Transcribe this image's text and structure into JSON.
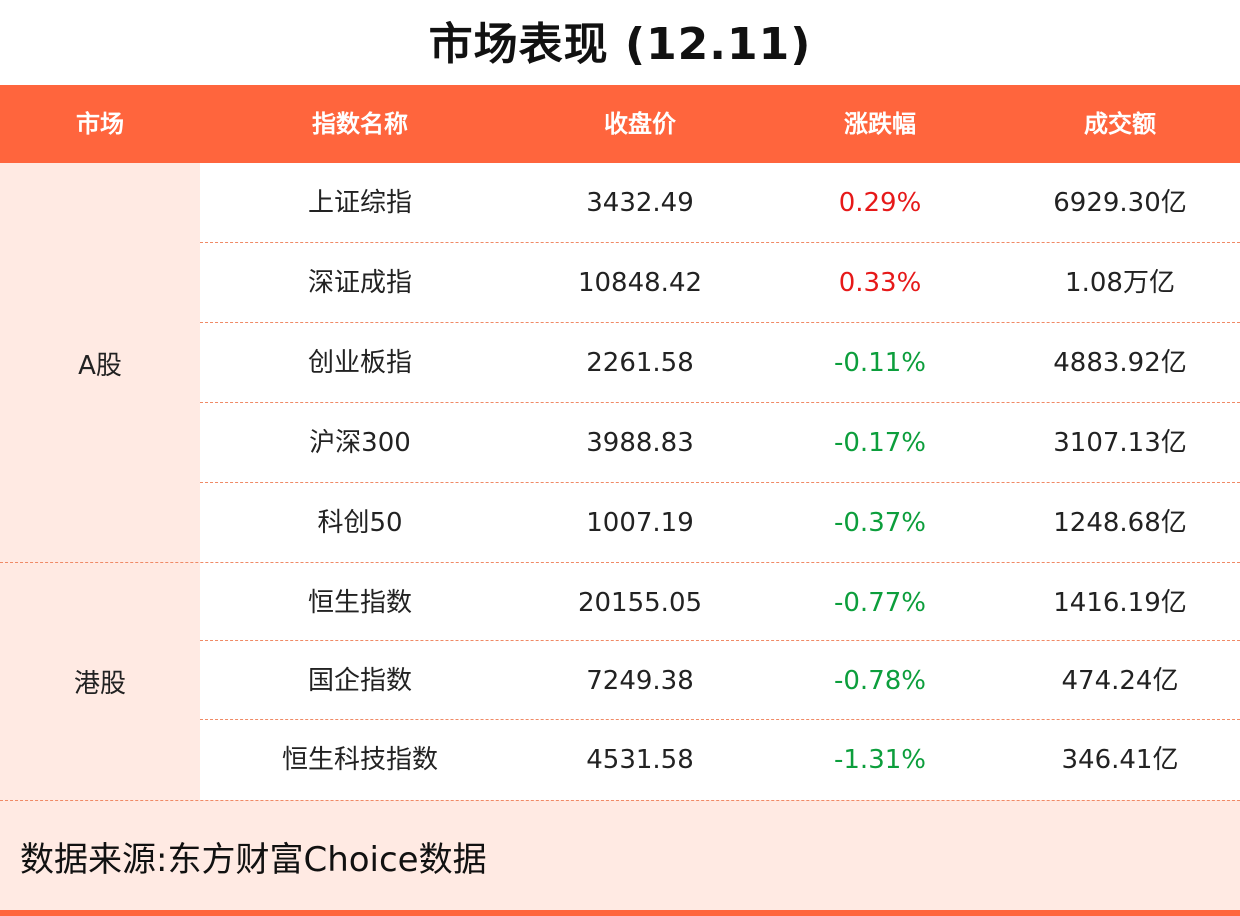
{
  "title": "市场表现 (12.11)",
  "headers": {
    "market": "市场",
    "name": "指数名称",
    "close": "收盘价",
    "change": "涨跌幅",
    "volume": "成交额"
  },
  "groups": [
    {
      "market": "A股"
    },
    {
      "market": "港股"
    }
  ],
  "rows": [
    {
      "name": "上证综指",
      "close": "3432.49",
      "change": "0.29%",
      "volume": "6929.30亿"
    },
    {
      "name": "深证成指",
      "close": "10848.42",
      "change": "0.33%",
      "volume": "1.08万亿"
    },
    {
      "name": "创业板指",
      "close": "2261.58",
      "change": "-0.11%",
      "volume": "4883.92亿"
    },
    {
      "name": "沪深300",
      "close": "3988.83",
      "change": "-0.17%",
      "volume": "3107.13亿"
    },
    {
      "name": "科创50",
      "close": "1007.19",
      "change": "-0.37%",
      "volume": "1248.68亿"
    },
    {
      "name": "恒生指数",
      "close": "20155.05",
      "change": "-0.77%",
      "volume": "1416.19亿"
    },
    {
      "name": "国企指数",
      "close": "7249.38",
      "change": "-0.78%",
      "volume": "474.24亿"
    },
    {
      "name": "恒生科技指数",
      "close": "4531.58",
      "change": "-1.31%",
      "volume": "346.41亿"
    }
  ],
  "source": "数据来源:东方财富Choice数据",
  "colors": {
    "accent": "#ff653d",
    "panel": "#ffeae3",
    "up": "#e61919",
    "down": "#0c9e3c"
  }
}
